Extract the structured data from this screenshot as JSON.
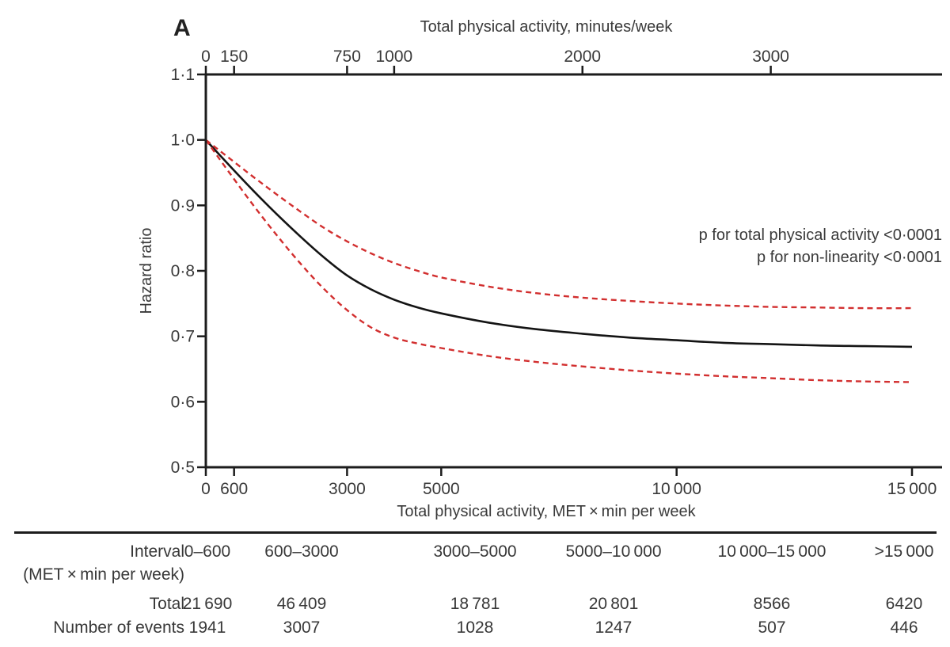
{
  "panel_label": "A",
  "accent_colors": {
    "ci_red": "#d22f2f",
    "line_black": "#141414",
    "text_gray": "#3a3a3a"
  },
  "chart_data": {
    "type": "line",
    "top_axis_title": "Total physical activity, minutes/week",
    "bottom_axis_title": "Total physical activity, MET × min per week",
    "ylabel": "Hazard ratio",
    "y_axis": {
      "range": [
        0.5,
        1.1
      ],
      "ticks": [
        1.1,
        1.0,
        0.9,
        0.8,
        0.7,
        0.6,
        0.5
      ],
      "tick_labels": [
        "1·1",
        "1·0",
        "0·9",
        "0·8",
        "0·7",
        "0·6",
        "0·5"
      ]
    },
    "x_axis_bottom": {
      "range": [
        0,
        15000
      ],
      "ticks": [
        0,
        600,
        3000,
        5000,
        10000,
        15000
      ],
      "tick_labels": [
        "0",
        "600",
        "3000",
        "5000",
        "10 000",
        "15 000"
      ]
    },
    "x_axis_top": {
      "ticks_minutes": [
        0,
        150,
        750,
        1000,
        2000,
        3000
      ],
      "tick_labels": [
        "0",
        "150",
        "750",
        "1000",
        "2000",
        "3000"
      ],
      "met_per_minute": 4
    },
    "annotations": [
      "p for total physical activity <0·0001",
      "p for non-linearity <0·0001"
    ],
    "grid": false,
    "series": [
      {
        "name": "hazard-ratio",
        "style": "solid",
        "color": "#141414",
        "x": [
          0,
          500,
          1000,
          1500,
          2000,
          2500,
          3000,
          3500,
          4000,
          4500,
          5000,
          6000,
          7000,
          8000,
          9000,
          10000,
          11000,
          12000,
          13000,
          14000,
          15000
        ],
        "y": [
          1.0,
          0.961,
          0.923,
          0.887,
          0.853,
          0.821,
          0.793,
          0.772,
          0.756,
          0.744,
          0.735,
          0.721,
          0.711,
          0.704,
          0.698,
          0.694,
          0.69,
          0.688,
          0.686,
          0.685,
          0.684
        ]
      },
      {
        "name": "upper-95-ci",
        "style": "dashed",
        "color": "#d22f2f",
        "x": [
          0,
          500,
          1000,
          1500,
          2000,
          2500,
          3000,
          3500,
          4000,
          4500,
          5000,
          6000,
          7000,
          8000,
          9000,
          10000,
          11000,
          12000,
          13000,
          14000,
          15000
        ],
        "y": [
          1.0,
          0.972,
          0.944,
          0.917,
          0.891,
          0.866,
          0.845,
          0.827,
          0.812,
          0.8,
          0.79,
          0.776,
          0.766,
          0.759,
          0.754,
          0.75,
          0.747,
          0.745,
          0.744,
          0.743,
          0.743
        ]
      },
      {
        "name": "lower-95-ci",
        "style": "dashed",
        "color": "#d22f2f",
        "x": [
          0,
          500,
          1000,
          1500,
          2000,
          2500,
          3000,
          3500,
          4000,
          4500,
          5000,
          6000,
          7000,
          8000,
          9000,
          10000,
          11000,
          12000,
          13000,
          14000,
          15000
        ],
        "y": [
          1.0,
          0.95,
          0.901,
          0.855,
          0.812,
          0.773,
          0.74,
          0.714,
          0.698,
          0.689,
          0.682,
          0.67,
          0.661,
          0.654,
          0.648,
          0.643,
          0.639,
          0.636,
          0.633,
          0.631,
          0.63
        ]
      }
    ]
  },
  "table": {
    "interval_label_line1": "Interval",
    "interval_label_line2": "(MET × min per week)",
    "total_label": "Total",
    "events_label": "Number of events",
    "intervals": [
      "0–600",
      "600–3000",
      "3000–5000",
      "5000–10 000",
      "10 000–15 000",
      ">15 000"
    ],
    "totals": [
      "21 690",
      "46 409",
      "18 781",
      "20 801",
      "8566",
      "6420"
    ],
    "events": [
      "1941",
      "3007",
      "1028",
      "1247",
      "507",
      "446"
    ]
  }
}
